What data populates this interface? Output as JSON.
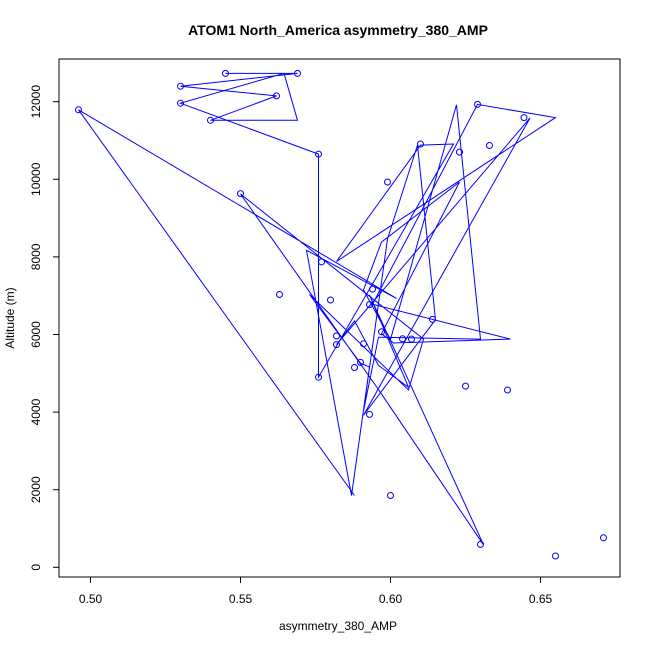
{
  "chart_data": {
    "type": "line",
    "title": "ATOM1 North_America asymmetry_380_AMP",
    "xlabel": "asymmetry_380_AMP",
    "ylabel": "Altitude (m)",
    "xlim": [
      0.4895,
      0.6765
    ],
    "ylim": [
      -250,
      13100
    ],
    "x_ticks": [
      0.5,
      0.55,
      0.6,
      0.65
    ],
    "x_tick_labels": [
      "0.50",
      "0.55",
      "0.60",
      "0.65"
    ],
    "y_ticks": [
      0,
      2000,
      4000,
      6000,
      8000,
      10000,
      12000
    ],
    "y_tick_labels": [
      "0",
      "2000",
      "4000",
      "6000",
      "8000",
      "10000",
      "12000"
    ],
    "grid": false,
    "legend": "none",
    "series_color": "#0000ff",
    "x": [
      0.545,
      0.569,
      0.53,
      0.562,
      0.54,
      0.569,
      0.5645,
      0.53,
      0.576,
      0.576,
      0.621,
      0.61,
      0.582,
      0.655,
      0.629,
      0.594,
      0.64,
      0.601,
      0.597,
      0.623,
      0.597,
      0.591,
      0.6,
      0.622,
      0.63,
      0.596,
      0.591,
      0.599,
      0.609,
      0.615,
      0.591,
      0.6465,
      0.582,
      0.588,
      0.596,
      0.606,
      0.593,
      0.631,
      0.596,
      0.55,
      0.611,
      0.606,
      0.573,
      0.59,
      0.593,
      0.587,
      0.572,
      0.602,
      0.496,
      0.588
    ],
    "y": [
      12730,
      12730,
      12400,
      12150,
      11520,
      11520,
      12730,
      11960,
      10650,
      4900,
      10910,
      10880,
      7880,
      11590,
      11930,
      6780,
      5880,
      5780,
      6020,
      9930,
      8380,
      7150,
      5870,
      11920,
      5880,
      5930,
      4030,
      8460,
      10880,
      6380,
      3920,
      11580,
      5740,
      6350,
      5200,
      4640,
      7020,
      580,
      4580,
      9620,
      5880,
      4570,
      7030,
      5260,
      5160,
      1850,
      8170,
      6930,
      11790,
      1850
    ],
    "points": [
      [
        0.545,
        12730
      ],
      [
        0.569,
        12730
      ],
      [
        0.53,
        12400
      ],
      [
        0.562,
        12150
      ],
      [
        0.53,
        11960
      ],
      [
        0.54,
        11520
      ],
      [
        0.496,
        11790
      ],
      [
        0.629,
        11930
      ],
      [
        0.6445,
        11590
      ],
      [
        0.633,
        10870
      ],
      [
        0.61,
        10910
      ],
      [
        0.623,
        10700
      ],
      [
        0.576,
        10650
      ],
      [
        0.599,
        9930
      ],
      [
        0.55,
        9630
      ],
      [
        0.577,
        7870
      ],
      [
        0.563,
        7030
      ],
      [
        0.58,
        6890
      ],
      [
        0.594,
        7170
      ],
      [
        0.593,
        6770
      ],
      [
        0.614,
        6390
      ],
      [
        0.597,
        6070
      ],
      [
        0.582,
        5960
      ],
      [
        0.604,
        5890
      ],
      [
        0.607,
        5880
      ],
      [
        0.591,
        5760
      ],
      [
        0.582,
        5740
      ],
      [
        0.59,
        5280
      ],
      [
        0.588,
        5150
      ],
      [
        0.576,
        4900
      ],
      [
        0.625,
        4670
      ],
      [
        0.639,
        4570
      ],
      [
        0.593,
        3940
      ],
      [
        0.6,
        1850
      ],
      [
        0.63,
        590
      ],
      [
        0.655,
        290
      ],
      [
        0.671,
        760
      ]
    ]
  }
}
